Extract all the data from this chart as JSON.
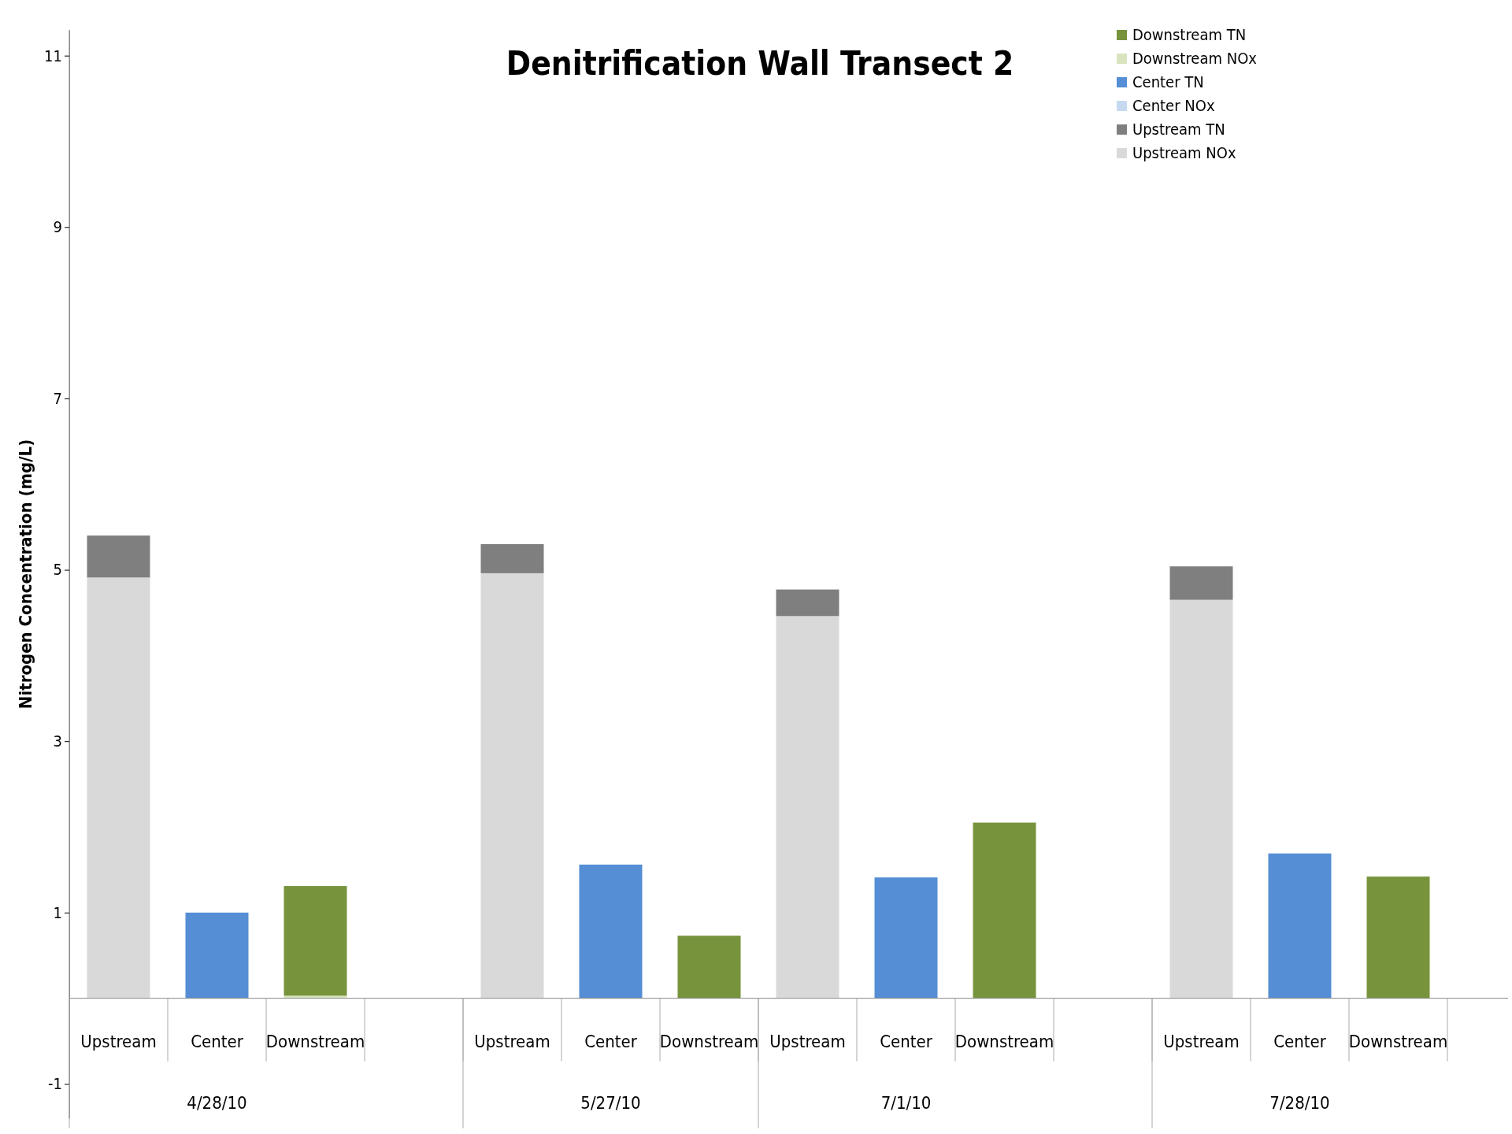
{
  "chart_data": {
    "type": "bar",
    "title": "Denitrification Wall Transect 2",
    "ylabel": "Nitrogen Concentration (mg/L)",
    "stacked": true,
    "legend": "top right",
    "grid": false,
    "categories": [
      "Upstream",
      "Center",
      "Downstream",
      null,
      "Upstream",
      "Center",
      "Downstream",
      "Upstream",
      "Center",
      "Downstream",
      null,
      "Upstream",
      "Center",
      "Downstream"
    ],
    "annotations": [
      "4/28/10",
      "5/27/10",
      "7/1/10",
      "7/28/10"
    ],
    "ylim": [
      -1.4,
      11.3
    ],
    "yticks": [
      -1,
      1,
      3,
      5,
      7,
      9,
      11
    ],
    "series": [
      {
        "name": "Upstream NOx",
        "color": "#d9d9d9",
        "values": [
          4.91,
          null,
          null,
          null,
          4.96,
          null,
          null,
          4.46,
          null,
          null,
          null,
          4.65,
          null,
          null
        ]
      },
      {
        "name": "Upstream TN",
        "color": "#7f7f7f",
        "values": [
          0.49,
          null,
          null,
          null,
          0.34,
          null,
          null,
          0.31,
          null,
          null,
          null,
          0.39,
          null,
          null
        ]
      },
      {
        "name": "Center NOx",
        "color": "#c6d9f1",
        "values": [
          null,
          null,
          null,
          null,
          null,
          null,
          null,
          null,
          null,
          null,
          null,
          null,
          null,
          null
        ]
      },
      {
        "name": "Center TN",
        "color": "#558ed5",
        "values": [
          null,
          1.0,
          null,
          null,
          null,
          1.56,
          null,
          null,
          1.41,
          null,
          null,
          null,
          1.69,
          null
        ]
      },
      {
        "name": "Downstream NOx",
        "color": "#d7e4bd",
        "values": [
          null,
          null,
          0.03,
          null,
          null,
          null,
          null,
          null,
          null,
          null,
          null,
          null,
          null,
          null
        ]
      },
      {
        "name": "Downstream TN",
        "color": "#77933c",
        "values": [
          null,
          null,
          1.28,
          null,
          null,
          null,
          0.73,
          null,
          null,
          2.05,
          null,
          null,
          null,
          1.42
        ]
      }
    ]
  }
}
